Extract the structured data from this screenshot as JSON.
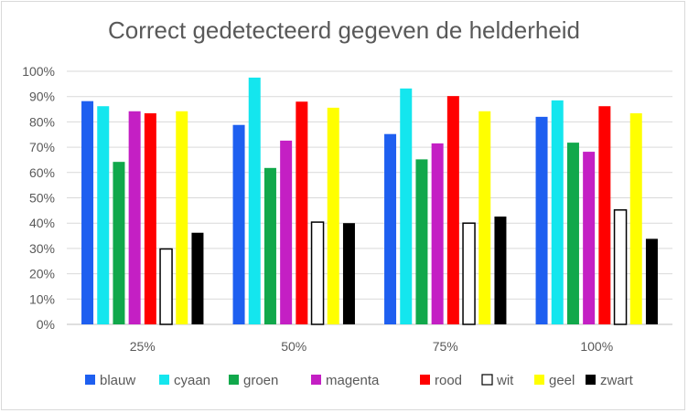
{
  "chart_data": {
    "type": "bar",
    "title": "Correct gedetecteerd gegeven de helderheid",
    "xlabel": "",
    "ylabel": "",
    "ylim": [
      0,
      100
    ],
    "ytick_labels": [
      "0%",
      "10%",
      "20%",
      "30%",
      "40%",
      "50%",
      "60%",
      "70%",
      "80%",
      "90%",
      "100%"
    ],
    "categories": [
      "25%",
      "50%",
      "75%",
      "100%"
    ],
    "grid": true,
    "legend_position": "bottom",
    "series": [
      {
        "name": "blauw",
        "color": "#1e5ff0",
        "values": [
          88.2,
          78.8,
          75.2,
          82.0
        ]
      },
      {
        "name": "cyaan",
        "color": "#14e6ee",
        "values": [
          86.2,
          97.5,
          93.2,
          88.5
        ]
      },
      {
        "name": "groen",
        "color": "#11a84b",
        "values": [
          64.2,
          61.8,
          65.2,
          71.8
        ]
      },
      {
        "name": "magenta",
        "color": "#c41fc4",
        "values": [
          84.2,
          72.6,
          71.5,
          68.2
        ]
      },
      {
        "name": "rood",
        "color": "#ff0000",
        "values": [
          83.4,
          88.0,
          90.2,
          86.2
        ]
      },
      {
        "name": "wit",
        "color": "#ffffff",
        "values": [
          29.8,
          40.4,
          40.0,
          45.2
        ]
      },
      {
        "name": "geel",
        "color": "#ffff00",
        "values": [
          84.2,
          85.6,
          84.2,
          83.4
        ]
      },
      {
        "name": "zwart",
        "color": "#000000",
        "values": [
          36.2,
          40.0,
          42.6,
          33.8
        ]
      }
    ]
  }
}
